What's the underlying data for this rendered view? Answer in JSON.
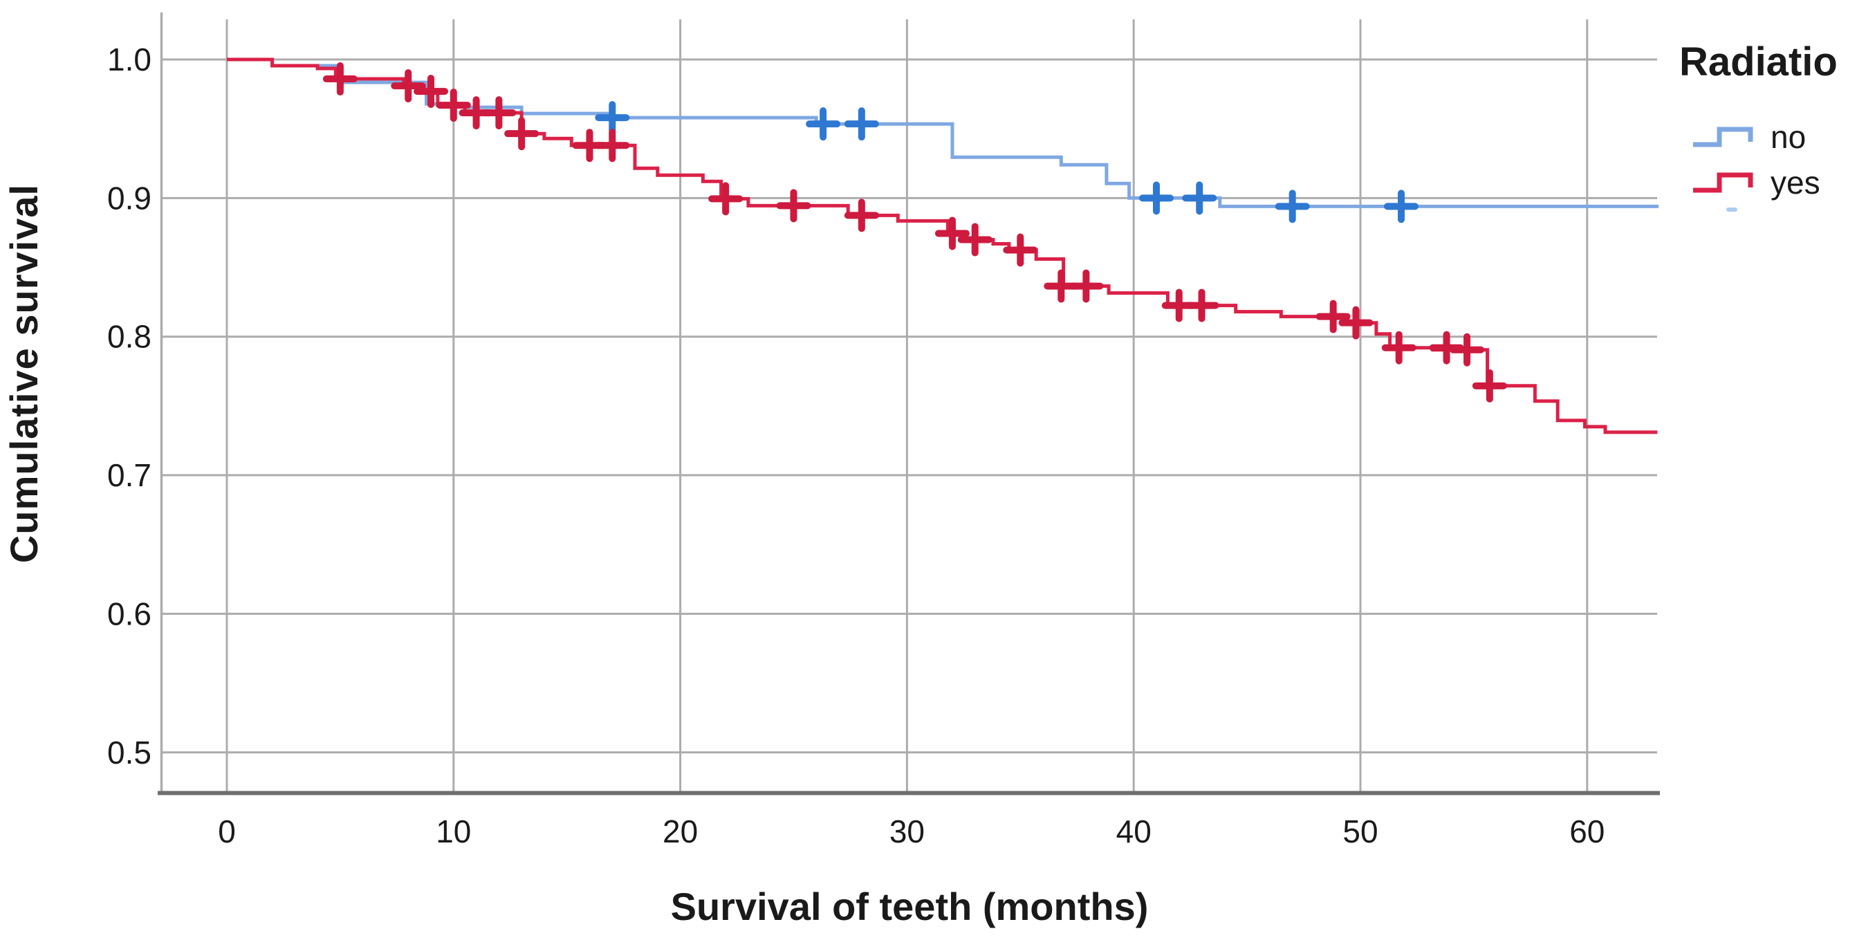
{
  "chart_data": {
    "type": "line",
    "subtype": "kaplan-meier-step-curves",
    "xlabel": "Survival of teeth (months)",
    "ylabel": "Cumulative survival",
    "x_ticks": [
      0,
      10,
      20,
      30,
      40,
      50,
      60
    ],
    "y_ticks": [
      "1.0",
      "0.9",
      "0.8",
      "0.7",
      "0.6",
      "0.5"
    ],
    "y_tick_values": [
      1.0,
      0.9,
      0.8,
      0.7,
      0.6,
      0.5
    ],
    "xlim": [
      -2.9,
      63.2
    ],
    "ylim": [
      0.47,
      1.03
    ],
    "grid": true,
    "legend": {
      "title": "Radiatio",
      "position": "top-right-outside",
      "entries": [
        {
          "label": "no"
        },
        {
          "label": "yes"
        }
      ]
    },
    "colors": {
      "grid": "#ACACAC",
      "axis": "#6E6E6E",
      "text": "#1A1A1A",
      "stray_mark": "#AECBF0"
    },
    "series": [
      {
        "name": "no",
        "line_color": "#7FA8E2",
        "censor_color": "#2E78D2",
        "steps": [
          [
            0,
            1.0
          ],
          [
            2,
            0.9955
          ],
          [
            5,
            0.9835
          ],
          [
            8.8,
            0.968
          ],
          [
            10.5,
            0.9655
          ],
          [
            13,
            0.961
          ],
          [
            17,
            0.958
          ],
          [
            26,
            0.9535
          ],
          [
            32,
            0.9295
          ],
          [
            36.8,
            0.924
          ],
          [
            38.8,
            0.9105
          ],
          [
            39.8,
            0.9
          ],
          [
            43.8,
            0.894
          ],
          [
            63.15,
            0.894
          ]
        ],
        "censors": [
          [
            17,
            0.958
          ],
          [
            26.3,
            0.9535
          ],
          [
            28,
            0.9535
          ],
          [
            41,
            0.9
          ],
          [
            42.9,
            0.9
          ],
          [
            47,
            0.894
          ],
          [
            51.8,
            0.894
          ]
        ]
      },
      {
        "name": "yes",
        "line_color": "#DB2148",
        "censor_color": "#CE1A3E",
        "steps": [
          [
            0,
            1.0
          ],
          [
            2,
            0.9955
          ],
          [
            4,
            0.9935
          ],
          [
            4.8,
            0.986
          ],
          [
            7.8,
            0.981
          ],
          [
            8.7,
            0.977
          ],
          [
            9.3,
            0.967
          ],
          [
            10.5,
            0.9615
          ],
          [
            13,
            0.9465
          ],
          [
            14,
            0.943
          ],
          [
            15.2,
            0.938
          ],
          [
            18,
            0.9215
          ],
          [
            19,
            0.9165
          ],
          [
            21,
            0.912
          ],
          [
            21.8,
            0.8995
          ],
          [
            23,
            0.8945
          ],
          [
            27.4,
            0.8875
          ],
          [
            29.6,
            0.8835
          ],
          [
            31.8,
            0.8745
          ],
          [
            32.4,
            0.87
          ],
          [
            33.8,
            0.867
          ],
          [
            34.5,
            0.8625
          ],
          [
            35.7,
            0.856
          ],
          [
            36.9,
            0.8365
          ],
          [
            38.9,
            0.8315
          ],
          [
            41.5,
            0.8225
          ],
          [
            44.5,
            0.818
          ],
          [
            46.5,
            0.8145
          ],
          [
            49.3,
            0.81
          ],
          [
            50.7,
            0.802
          ],
          [
            51.3,
            0.792
          ],
          [
            53.2,
            0.7905
          ],
          [
            55.6,
            0.7645
          ],
          [
            57.7,
            0.7535
          ],
          [
            58.7,
            0.7395
          ],
          [
            59.9,
            0.735
          ],
          [
            60.8,
            0.731
          ],
          [
            63.1,
            0.731
          ]
        ],
        "censors": [
          [
            5,
            0.986
          ],
          [
            8,
            0.981
          ],
          [
            9,
            0.977
          ],
          [
            10,
            0.967
          ],
          [
            11,
            0.9615
          ],
          [
            12,
            0.9615
          ],
          [
            13,
            0.9465
          ],
          [
            16,
            0.938
          ],
          [
            17,
            0.938
          ],
          [
            22,
            0.8995
          ],
          [
            25,
            0.8945
          ],
          [
            28,
            0.8875
          ],
          [
            32,
            0.8745
          ],
          [
            33,
            0.87
          ],
          [
            35,
            0.8625
          ],
          [
            36.8,
            0.8365
          ],
          [
            37.9,
            0.8365
          ],
          [
            42,
            0.8225
          ],
          [
            43,
            0.8225
          ],
          [
            48.8,
            0.8145
          ],
          [
            49.8,
            0.81
          ],
          [
            51.7,
            0.792
          ],
          [
            53.8,
            0.792
          ],
          [
            54.7,
            0.7905
          ],
          [
            55.7,
            0.7645
          ]
        ]
      }
    ]
  }
}
